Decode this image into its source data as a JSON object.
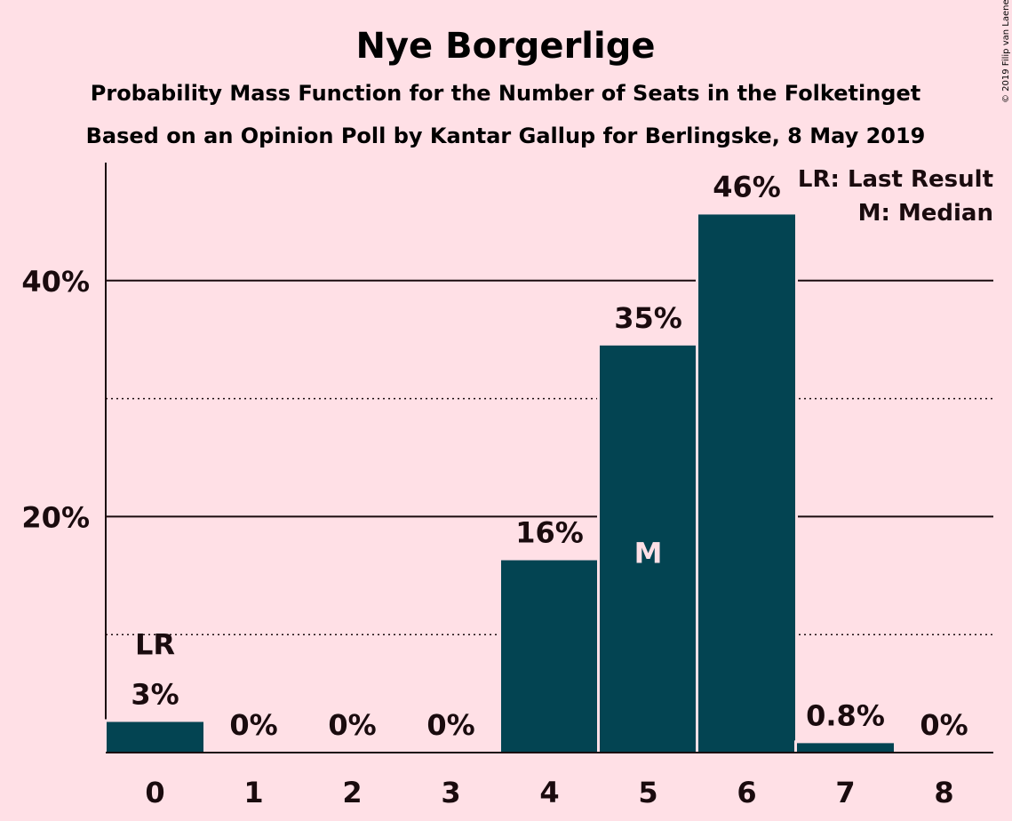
{
  "chart_data": {
    "type": "bar",
    "title": "Nye Borgerlige",
    "subtitle1": "Probability Mass Function for the Number of Seats in the Folketinget",
    "subtitle2": "Based on an Opinion Poll by Kantar Gallup for Berlingske, 8 May 2019",
    "categories": [
      "0",
      "1",
      "2",
      "3",
      "4",
      "5",
      "6",
      "7",
      "8"
    ],
    "values": [
      2.6,
      0,
      0,
      0,
      16.3,
      34.5,
      45.6,
      0.8,
      0
    ],
    "data_labels": [
      "3%",
      "0%",
      "0%",
      "0%",
      "16%",
      "35%",
      "46%",
      "0.8%",
      "0%"
    ],
    "ylim": [
      0,
      50
    ],
    "y_ticks": [
      {
        "value": 20,
        "label": "20%"
      },
      {
        "value": 40,
        "label": "40%"
      }
    ],
    "minor_gridlines": [
      10,
      30
    ],
    "markers": {
      "last_result": {
        "category_index": 0,
        "label": "LR"
      },
      "median": {
        "category_index": 5,
        "label": "M"
      }
    },
    "legend": [
      "LR: Last Result",
      "M: Median"
    ],
    "legend_position": "top-right",
    "copyright": "© 2019 Filip van Laenen",
    "colors": {
      "background": "#FFE0E6",
      "bar": "#034452",
      "text": "#1a0b0e",
      "median_text": "#FFE0E6"
    }
  }
}
